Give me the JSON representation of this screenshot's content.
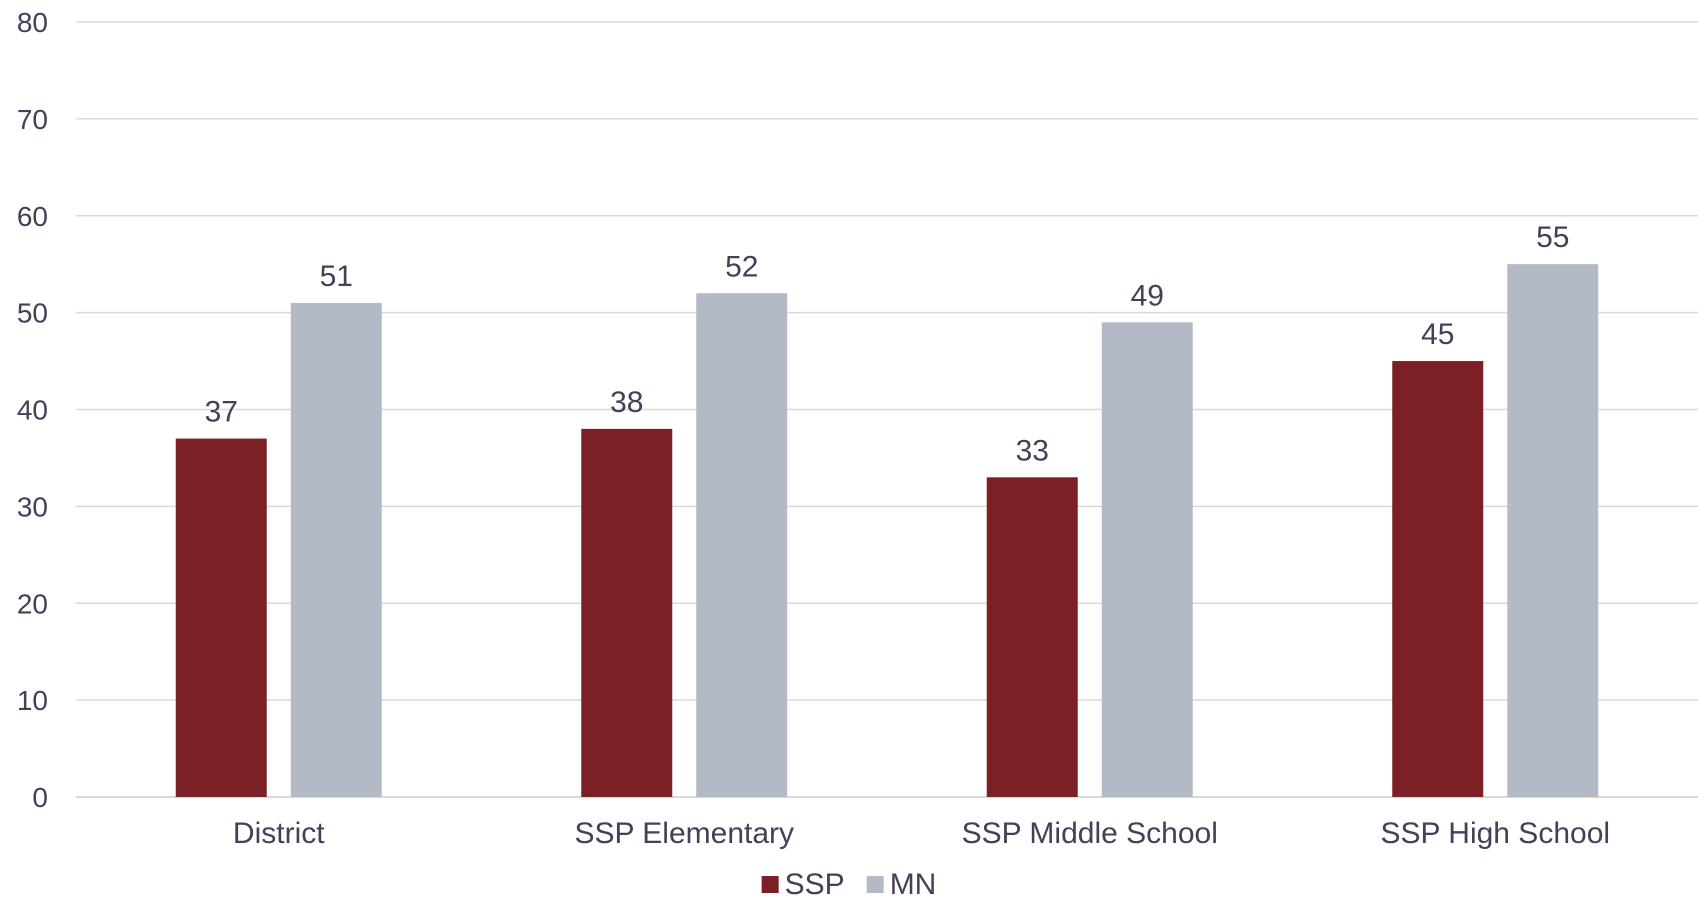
{
  "chart_data": {
    "type": "bar",
    "categories": [
      "District",
      "SSP Elementary",
      "SSP Middle School",
      "SSP High School"
    ],
    "series": [
      {
        "name": "SSP",
        "values": [
          37,
          38,
          33,
          45
        ],
        "color": "#7B2024"
      },
      {
        "name": "MN",
        "values": [
          51,
          52,
          49,
          55
        ],
        "color": "#B4BAC5"
      }
    ],
    "title": "",
    "xlabel": "",
    "ylabel": "",
    "ylim": [
      0,
      80
    ],
    "yticks": [
      0,
      10,
      20,
      30,
      40,
      50,
      60,
      70,
      80
    ],
    "grid": true,
    "legend": "bottom-center",
    "data_labels": true
  }
}
